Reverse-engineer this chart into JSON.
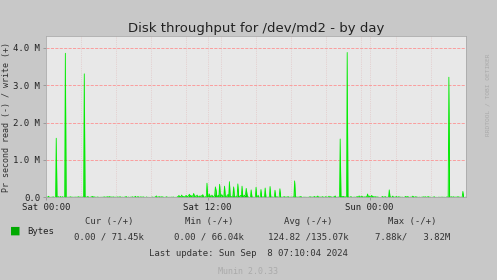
{
  "title": "Disk throughput for /dev/md2 - by day",
  "ylabel": "Pr second read (-) / write (+)",
  "xlabel_ticks": [
    "Sat 00:00",
    "Sat 12:00",
    "Sun 00:00"
  ],
  "ylim": [
    0,
    4300000
  ],
  "yticks": [
    0.0,
    1000000,
    2000000,
    3000000,
    4000000
  ],
  "ytick_labels": [
    "0.0",
    "1.0 M",
    "2.0 M",
    "3.0 M",
    "4.0 M"
  ],
  "line_color": "#00ee00",
  "fill_color": "#00cc00",
  "bg_color": "#c8c8c8",
  "plot_bg_color": "#e8e8e8",
  "grid_color_h": "#ff8888",
  "grid_color_v": "#cc8888",
  "right_label": "RRDTOOL / TOBI OETIKER",
  "footer_munin": "Munin 2.0.33",
  "legend_label": "Bytes",
  "legend_color": "#00aa00",
  "last_update": "Last update: Sun Sep  8 07:10:04 2024",
  "n_points": 600,
  "total_hours": 31.17,
  "spike_positions": [
    15,
    28,
    55,
    230,
    242,
    248,
    255,
    262,
    268,
    274,
    280,
    286,
    293,
    300,
    307,
    313,
    320,
    327,
    334,
    355,
    420,
    430,
    490,
    575,
    595
  ],
  "spike_heights": [
    1580000,
    3850000,
    3300000,
    380000,
    280000,
    350000,
    300000,
    420000,
    280000,
    360000,
    300000,
    240000,
    200000,
    270000,
    210000,
    250000,
    290000,
    190000,
    230000,
    440000,
    1560000,
    3870000,
    200000,
    3210000,
    160000
  ]
}
